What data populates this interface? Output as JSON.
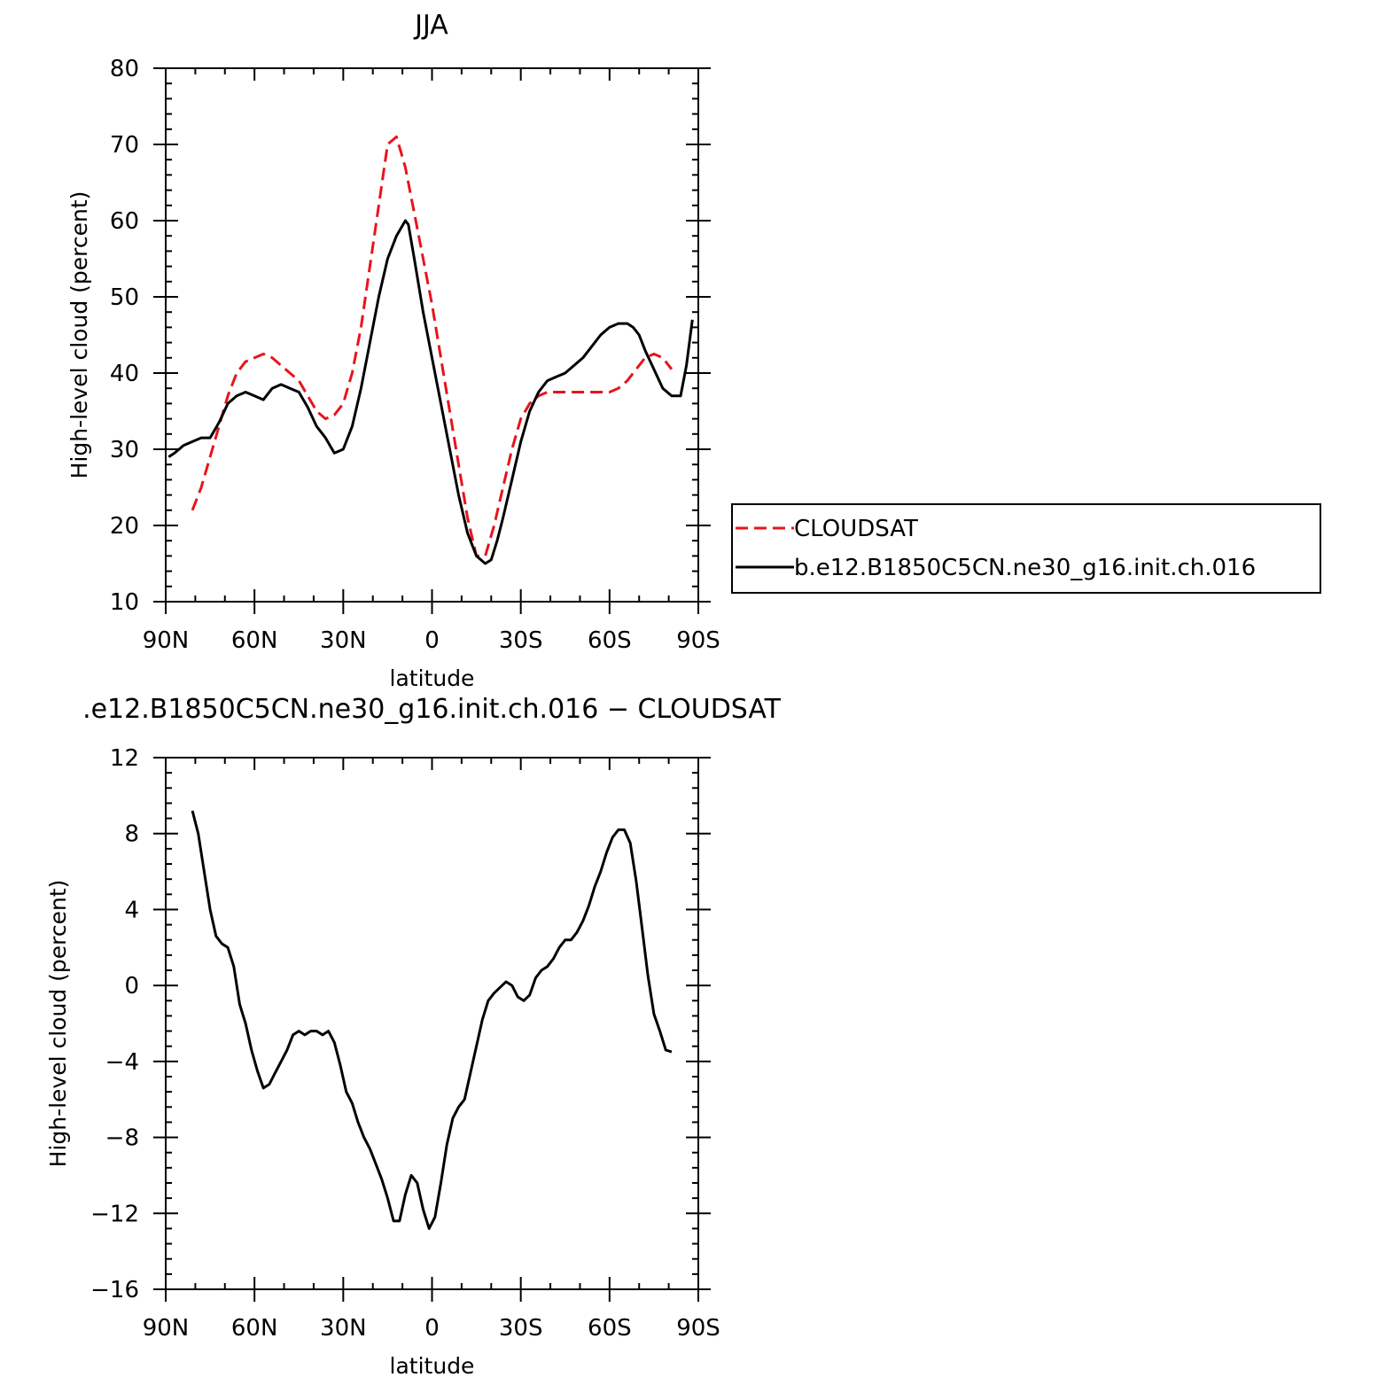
{
  "chart_data": [
    {
      "type": "line",
      "title": "JJA",
      "xlabel": "latitude",
      "ylabel": "High-level cloud (percent)",
      "xlim": [
        90,
        -90
      ],
      "ylim": [
        10,
        80
      ],
      "x_ticks": [
        {
          "value": 90,
          "label": "90N"
        },
        {
          "value": 60,
          "label": "60N"
        },
        {
          "value": 30,
          "label": "30N"
        },
        {
          "value": 0,
          "label": "0"
        },
        {
          "value": -30,
          "label": "30S"
        },
        {
          "value": -60,
          "label": "60S"
        },
        {
          "value": -90,
          "label": "90S"
        }
      ],
      "y_ticks": [
        {
          "value": 80,
          "label": "80"
        },
        {
          "value": 70,
          "label": "70"
        },
        {
          "value": 60,
          "label": "60"
        },
        {
          "value": 50,
          "label": "50"
        },
        {
          "value": 40,
          "label": "40"
        },
        {
          "value": 30,
          "label": "30"
        },
        {
          "value": 20,
          "label": "20"
        },
        {
          "value": 10,
          "label": "10"
        }
      ],
      "legend_position": "right",
      "series": [
        {
          "name": "CLOUDSAT",
          "color": "#e8141b",
          "dash": "dashed",
          "x": [
            81,
            78,
            75,
            72,
            69,
            66,
            63,
            60,
            57,
            54,
            51,
            48,
            45,
            42,
            39,
            36,
            33,
            30,
            27,
            24,
            21,
            18,
            15,
            12,
            9,
            6,
            3,
            0,
            -3,
            -6,
            -9,
            -12,
            -15,
            -18,
            -21,
            -24,
            -27,
            -30,
            -33,
            -36,
            -39,
            -42,
            -45,
            -48,
            -51,
            -54,
            -57,
            -60,
            -63,
            -66,
            -69,
            -72,
            -75,
            -78,
            -81
          ],
          "y": [
            22,
            25,
            29,
            33,
            37,
            40,
            41.5,
            42,
            42.5,
            42,
            41,
            40,
            39,
            37,
            35,
            34,
            34.5,
            36,
            40,
            46,
            54,
            62,
            70,
            71,
            67,
            61,
            55,
            49,
            42,
            35,
            28,
            21,
            16,
            16,
            20,
            25,
            30,
            34,
            36,
            37,
            37.5,
            37.5,
            37.5,
            37.5,
            37.5,
            37.5,
            37.5,
            37.5,
            38,
            39,
            40.5,
            42,
            42.5,
            42,
            40.5
          ]
        },
        {
          "name": "b.e12.B1850C5CN.ne30_g16.init.ch.016",
          "color": "#000000",
          "dash": "solid",
          "x": [
            89,
            87,
            84,
            81,
            78,
            75,
            72,
            69,
            66,
            63,
            60,
            57,
            54,
            51,
            48,
            45,
            42,
            39,
            36,
            33,
            30,
            27,
            24,
            21,
            18,
            15,
            12,
            9,
            8,
            6,
            3,
            0,
            -3,
            -6,
            -9,
            -12,
            -15,
            -18,
            -20,
            -22,
            -24,
            -27,
            -30,
            -33,
            -36,
            -39,
            -42,
            -45,
            -48,
            -51,
            -54,
            -57,
            -60,
            -63,
            -66,
            -68,
            -70,
            -72,
            -75,
            -78,
            -81,
            -84,
            -86,
            -88
          ],
          "y": [
            29,
            29.5,
            30.5,
            31,
            31.5,
            31.5,
            33.5,
            36,
            37,
            37.5,
            37,
            36.5,
            38,
            38.5,
            38,
            37.5,
            35.5,
            33,
            31.5,
            29.5,
            30,
            33,
            38,
            44,
            50,
            55,
            58,
            60,
            59.5,
            55,
            48,
            42,
            36,
            30,
            24,
            19,
            16,
            15,
            15.5,
            18,
            21,
            26,
            31,
            35,
            37.5,
            39,
            39.5,
            40,
            41,
            42,
            43.5,
            45,
            46,
            46.5,
            46.5,
            46,
            45,
            43,
            40.5,
            38,
            37,
            37,
            41,
            47
          ]
        }
      ]
    },
    {
      "type": "line",
      "title": ".e12.B1850C5CN.ne30_g16.init.ch.016 - CLOUDSAT",
      "xlabel": "latitude",
      "ylabel": "High-level cloud (percent)",
      "xlim": [
        90,
        -90
      ],
      "ylim": [
        -16,
        12
      ],
      "x_ticks": [
        {
          "value": 90,
          "label": "90N"
        },
        {
          "value": 60,
          "label": "60N"
        },
        {
          "value": 30,
          "label": "30N"
        },
        {
          "value": 0,
          "label": "0"
        },
        {
          "value": -30,
          "label": "30S"
        },
        {
          "value": -60,
          "label": "60S"
        },
        {
          "value": -90,
          "label": "90S"
        }
      ],
      "y_ticks": [
        {
          "value": 12,
          "label": "12"
        },
        {
          "value": 8,
          "label": "8"
        },
        {
          "value": 4,
          "label": "4"
        },
        {
          "value": 0,
          "label": "0"
        },
        {
          "value": -4,
          "label": "-4"
        },
        {
          "value": -8,
          "label": "-8"
        },
        {
          "value": -12,
          "label": "-12"
        },
        {
          "value": -16,
          "label": "-16"
        }
      ],
      "series": [
        {
          "color": "#000000",
          "dash": "solid",
          "x": [
            81,
            79,
            77,
            75,
            73,
            71,
            69,
            67,
            65,
            63,
            61,
            59,
            57,
            55,
            53,
            51,
            49,
            47,
            45,
            43,
            41,
            39,
            37,
            35,
            33,
            31,
            29,
            27,
            25,
            23,
            21,
            19,
            17,
            15,
            13,
            11,
            9,
            7,
            5,
            3,
            1,
            -1,
            -3,
            -5,
            -7,
            -9,
            -11,
            -13,
            -15,
            -17,
            -19,
            -21,
            -23,
            -25,
            -27,
            -29,
            -31,
            -33,
            -35,
            -37,
            -39,
            -41,
            -43,
            -45,
            -47,
            -49,
            -51,
            -53,
            -55,
            -57,
            -59,
            -61,
            -63,
            -65,
            -67,
            -69,
            -71,
            -73,
            -75,
            -77,
            -79,
            -81
          ],
          "y": [
            9.2,
            8,
            6,
            4,
            2.6,
            2.2,
            2,
            1,
            -1,
            -2,
            -3.4,
            -4.5,
            -5.4,
            -5.2,
            -4.6,
            -4,
            -3.4,
            -2.6,
            -2.4,
            -2.6,
            -2.4,
            -2.4,
            -2.6,
            -2.4,
            -3,
            -4.2,
            -5.6,
            -6.2,
            -7.2,
            -8,
            -8.6,
            -9.4,
            -10.2,
            -11.2,
            -12.4,
            -12.4,
            -11,
            -10,
            -10.4,
            -11.8,
            -12.8,
            -12.2,
            -10.4,
            -8.4,
            -7,
            -6.4,
            -6,
            -4.6,
            -3.2,
            -1.8,
            -0.8,
            -0.4,
            -0.1,
            0.2,
            0,
            -0.6,
            -0.8,
            -0.5,
            0.4,
            0.8,
            1,
            1.4,
            2,
            2.4,
            2.4,
            2.8,
            3.4,
            4.2,
            5.2,
            6,
            7,
            7.8,
            8.2,
            8.2,
            7.5,
            5.5,
            3,
            0.5,
            -1.5,
            -2.4,
            -3.4,
            -3.5
          ]
        }
      ]
    }
  ]
}
